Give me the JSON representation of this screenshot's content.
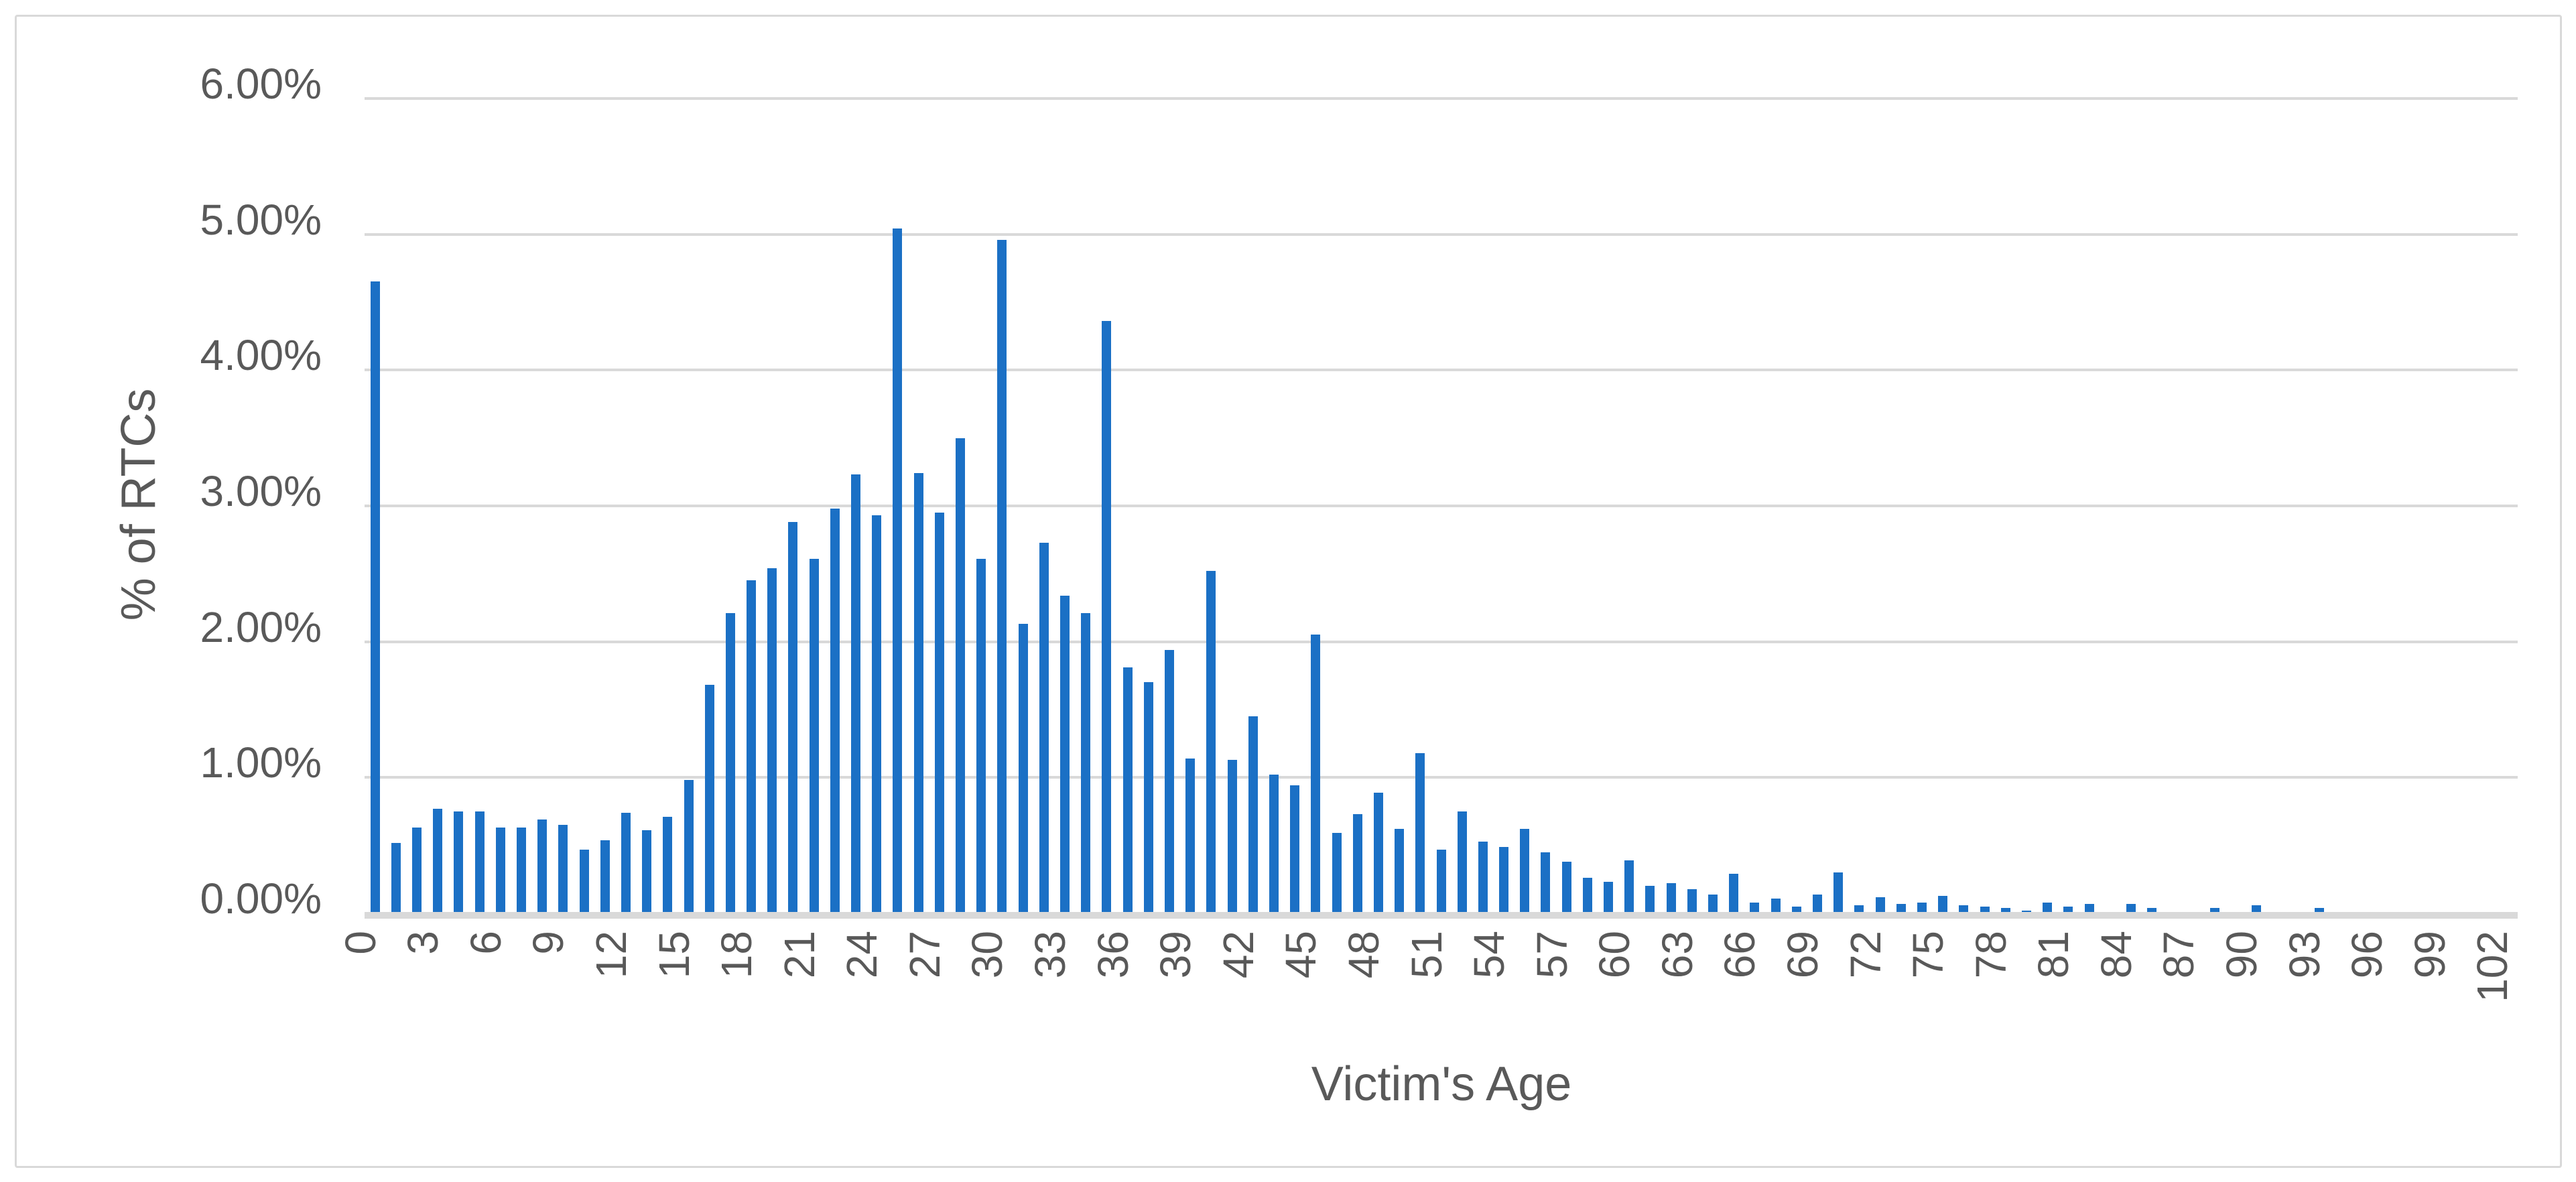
{
  "chart_data": {
    "type": "bar",
    "title": "",
    "xlabel": "Victim's Age",
    "ylabel": "% of RTCs",
    "x": [
      0,
      1,
      2,
      3,
      4,
      5,
      6,
      7,
      8,
      9,
      10,
      11,
      12,
      13,
      14,
      15,
      16,
      17,
      18,
      19,
      20,
      21,
      22,
      23,
      24,
      25,
      26,
      27,
      28,
      29,
      30,
      31,
      32,
      33,
      34,
      35,
      36,
      37,
      38,
      39,
      40,
      41,
      42,
      43,
      44,
      45,
      46,
      47,
      48,
      49,
      50,
      51,
      52,
      53,
      54,
      55,
      56,
      57,
      58,
      59,
      60,
      61,
      62,
      63,
      64,
      65,
      66,
      67,
      68,
      69,
      70,
      71,
      72,
      73,
      74,
      75,
      76,
      77,
      78,
      79,
      80,
      81,
      82,
      83,
      84,
      85,
      86,
      87,
      88,
      89,
      90,
      91,
      92,
      93,
      94,
      95,
      96,
      97,
      98,
      99,
      100,
      101,
      102
    ],
    "values_pct": [
      4.64,
      0.51,
      0.62,
      0.76,
      0.74,
      0.74,
      0.62,
      0.62,
      0.68,
      0.64,
      0.46,
      0.53,
      0.73,
      0.6,
      0.7,
      0.97,
      1.67,
      2.2,
      2.44,
      2.53,
      2.87,
      2.6,
      2.97,
      3.22,
      2.92,
      5.03,
      3.23,
      2.94,
      3.49,
      2.6,
      4.95,
      2.12,
      2.72,
      2.33,
      2.2,
      4.35,
      1.8,
      1.69,
      1.93,
      1.13,
      2.51,
      1.12,
      1.44,
      1.01,
      0.93,
      2.04,
      0.58,
      0.72,
      0.88,
      0.61,
      1.17,
      0.46,
      0.74,
      0.52,
      0.48,
      0.61,
      0.44,
      0.37,
      0.25,
      0.22,
      0.38,
      0.19,
      0.21,
      0.17,
      0.13,
      0.28,
      0.07,
      0.1,
      0.04,
      0.13,
      0.29,
      0.05,
      0.11,
      0.06,
      0.07,
      0.12,
      0.05,
      0.04,
      0.03,
      0.01,
      0.07,
      0.04,
      0.06,
      0,
      0.06,
      0.03,
      0,
      0,
      0.03,
      0,
      0.05,
      0,
      0,
      0.03,
      0,
      0,
      0,
      0,
      0,
      0,
      0,
      0,
      0
    ],
    "x_tick_labels": [
      "0",
      "3",
      "6",
      "9",
      "12",
      "15",
      "18",
      "21",
      "24",
      "27",
      "30",
      "33",
      "36",
      "39",
      "42",
      "45",
      "48",
      "51",
      "54",
      "57",
      "60",
      "63",
      "66",
      "69",
      "72",
      "75",
      "78",
      "81",
      "84",
      "87",
      "90",
      "93",
      "96",
      "99",
      "102"
    ],
    "x_tick_step": 3,
    "y_tick_labels": [
      "0.00%",
      "1.00%",
      "2.00%",
      "3.00%",
      "4.00%",
      "5.00%",
      "6.00%"
    ],
    "ylim_pct": [
      0,
      6
    ],
    "grid": "horizontal",
    "legend": "none",
    "bar_color": "#1B70C5",
    "gridline_color": "#D9D9D9",
    "axis_text_color": "#595959"
  }
}
